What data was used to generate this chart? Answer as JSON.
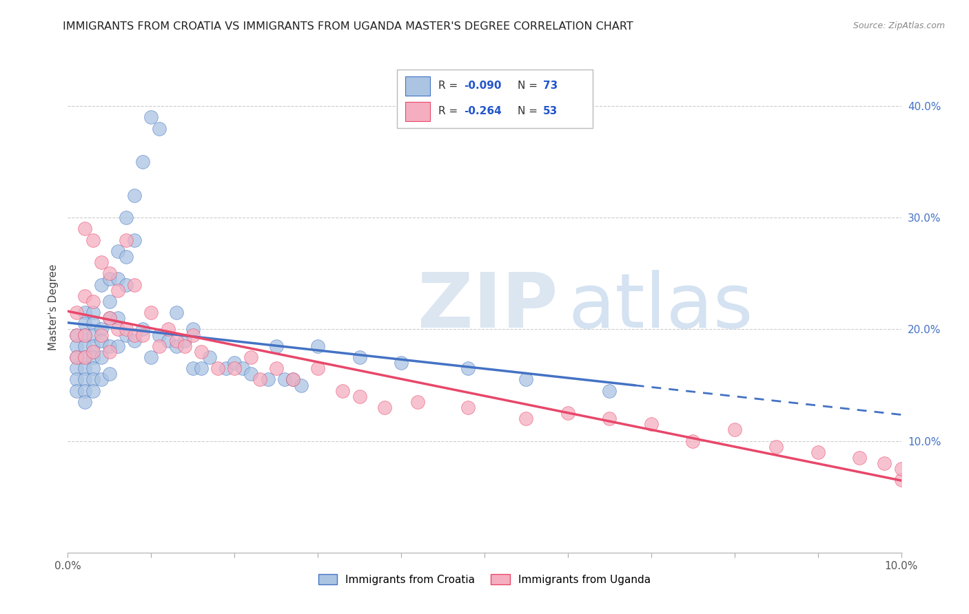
{
  "title": "IMMIGRANTS FROM CROATIA VS IMMIGRANTS FROM UGANDA MASTER'S DEGREE CORRELATION CHART",
  "source": "Source: ZipAtlas.com",
  "ylabel": "Master's Degree",
  "ytick_labels": [
    "",
    "10.0%",
    "20.0%",
    "30.0%",
    "40.0%"
  ],
  "ytick_values": [
    0.0,
    0.1,
    0.2,
    0.3,
    0.4
  ],
  "xlim": [
    0.0,
    0.1
  ],
  "ylim": [
    0.0,
    0.44
  ],
  "legend_r1": "-0.090",
  "legend_n1": "73",
  "legend_r2": "-0.264",
  "legend_n2": "53",
  "color_croatia": "#aac4e2",
  "color_uganda": "#f5aec0",
  "line_color_croatia": "#4472c4",
  "line_color_uganda": "#e8476a",
  "color_r": "#2255cc",
  "color_n": "#2255cc",
  "grid_color": "#cccccc",
  "background_color": "#ffffff",
  "title_fontsize": 11.5,
  "axis_fontsize": 11,
  "legend_fontsize": 11,
  "croatia_x": [
    0.001,
    0.001,
    0.001,
    0.001,
    0.001,
    0.001,
    0.002,
    0.002,
    0.002,
    0.002,
    0.002,
    0.002,
    0.002,
    0.002,
    0.002,
    0.003,
    0.003,
    0.003,
    0.003,
    0.003,
    0.003,
    0.003,
    0.003,
    0.004,
    0.004,
    0.004,
    0.004,
    0.004,
    0.005,
    0.005,
    0.005,
    0.005,
    0.005,
    0.006,
    0.006,
    0.006,
    0.006,
    0.007,
    0.007,
    0.007,
    0.007,
    0.008,
    0.008,
    0.008,
    0.009,
    0.009,
    0.01,
    0.01,
    0.011,
    0.011,
    0.012,
    0.013,
    0.013,
    0.014,
    0.015,
    0.015,
    0.016,
    0.017,
    0.019,
    0.02,
    0.021,
    0.022,
    0.024,
    0.025,
    0.026,
    0.027,
    0.028,
    0.03,
    0.035,
    0.04,
    0.048,
    0.055,
    0.065
  ],
  "croatia_y": [
    0.195,
    0.185,
    0.175,
    0.165,
    0.155,
    0.145,
    0.215,
    0.205,
    0.195,
    0.185,
    0.175,
    0.165,
    0.155,
    0.145,
    0.135,
    0.215,
    0.205,
    0.195,
    0.185,
    0.175,
    0.165,
    0.155,
    0.145,
    0.24,
    0.2,
    0.19,
    0.175,
    0.155,
    0.245,
    0.225,
    0.21,
    0.185,
    0.16,
    0.27,
    0.245,
    0.21,
    0.185,
    0.3,
    0.265,
    0.24,
    0.195,
    0.32,
    0.28,
    0.19,
    0.35,
    0.2,
    0.39,
    0.175,
    0.38,
    0.195,
    0.19,
    0.215,
    0.185,
    0.19,
    0.2,
    0.165,
    0.165,
    0.175,
    0.165,
    0.17,
    0.165,
    0.16,
    0.155,
    0.185,
    0.155,
    0.155,
    0.15,
    0.185,
    0.175,
    0.17,
    0.165,
    0.155,
    0.145
  ],
  "uganda_x": [
    0.001,
    0.001,
    0.001,
    0.002,
    0.002,
    0.002,
    0.002,
    0.003,
    0.003,
    0.003,
    0.004,
    0.004,
    0.005,
    0.005,
    0.005,
    0.006,
    0.006,
    0.007,
    0.007,
    0.008,
    0.008,
    0.009,
    0.01,
    0.011,
    0.012,
    0.013,
    0.014,
    0.015,
    0.016,
    0.018,
    0.02,
    0.022,
    0.023,
    0.025,
    0.027,
    0.03,
    0.033,
    0.035,
    0.038,
    0.042,
    0.048,
    0.055,
    0.06,
    0.065,
    0.07,
    0.075,
    0.08,
    0.085,
    0.09,
    0.095,
    0.098,
    0.1,
    0.1
  ],
  "uganda_y": [
    0.215,
    0.195,
    0.175,
    0.29,
    0.23,
    0.195,
    0.175,
    0.28,
    0.225,
    0.18,
    0.26,
    0.195,
    0.25,
    0.21,
    0.18,
    0.235,
    0.2,
    0.28,
    0.2,
    0.24,
    0.195,
    0.195,
    0.215,
    0.185,
    0.2,
    0.19,
    0.185,
    0.195,
    0.18,
    0.165,
    0.165,
    0.175,
    0.155,
    0.165,
    0.155,
    0.165,
    0.145,
    0.14,
    0.13,
    0.135,
    0.13,
    0.12,
    0.125,
    0.12,
    0.115,
    0.1,
    0.11,
    0.095,
    0.09,
    0.085,
    0.08,
    0.065,
    0.075
  ]
}
